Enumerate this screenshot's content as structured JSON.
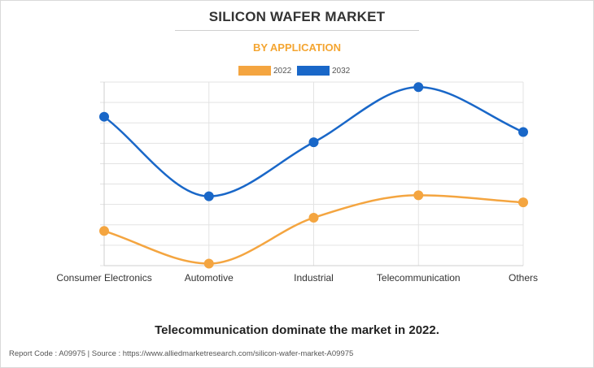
{
  "header": {
    "title": "SILICON WAFER MARKET",
    "subtitle": "BY APPLICATION"
  },
  "chart_data": {
    "type": "line",
    "title": "SILICON WAFER MARKET",
    "subtitle": "BY APPLICATION",
    "categories": [
      "Consumer Electronics",
      "Automotive",
      "Industrial",
      "Telecommunication",
      "Others"
    ],
    "series": [
      {
        "name": "2022",
        "color": "#f4a540",
        "values": [
          1.7,
          0.1,
          2.35,
          3.45,
          3.1
        ]
      },
      {
        "name": "2032",
        "color": "#1967c8",
        "values": [
          7.3,
          3.4,
          6.05,
          8.75,
          6.55
        ]
      }
    ],
    "ylim": [
      0,
      9
    ],
    "grid": true,
    "legend_position": "top-center",
    "xlabel": "",
    "ylabel": ""
  },
  "footer": {
    "note": "Telecommunication dominate the market in 2022.",
    "report": "Report Code : A09975  |  Source : https://www.alliedmarketresearch.com/silicon-wafer-market-A09975"
  }
}
